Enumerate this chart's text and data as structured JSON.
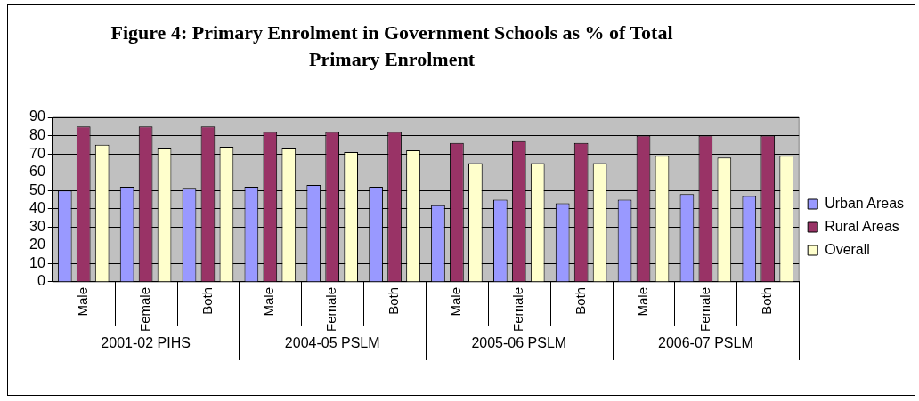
{
  "chart_data": {
    "type": "bar",
    "title": "Figure 4: Primary Enrolment in Government Schools as % of Total Primary Enrolment",
    "categories": [
      "Male",
      "Female",
      "Both",
      "Male",
      "Female",
      "Both",
      "Male",
      "Female",
      "Both",
      "Male",
      "Female",
      "Both"
    ],
    "annotations": [
      "2001-02 PIHS",
      "2004-05 PSLM",
      "2005-06 PSLM",
      "2006-07 PSLM"
    ],
    "series": [
      {
        "name": "Urban Areas",
        "color": "#9999ff",
        "values": [
          50,
          52,
          51,
          52,
          53,
          52,
          42,
          45,
          43,
          45,
          48,
          47
        ]
      },
      {
        "name": "Rural Areas",
        "color": "#993366",
        "values": [
          85,
          85,
          85,
          82,
          82,
          82,
          76,
          77,
          76,
          80,
          80,
          80
        ]
      },
      {
        "name": "Overall",
        "color": "#ffffcc",
        "values": [
          75,
          73,
          74,
          73,
          71,
          72,
          65,
          65,
          65,
          69,
          68,
          69
        ]
      }
    ],
    "ylim": [
      0,
      90
    ],
    "yticks": [
      0,
      10,
      20,
      30,
      40,
      50,
      60,
      70,
      80,
      90
    ],
    "grid": "y",
    "legend": "right"
  }
}
